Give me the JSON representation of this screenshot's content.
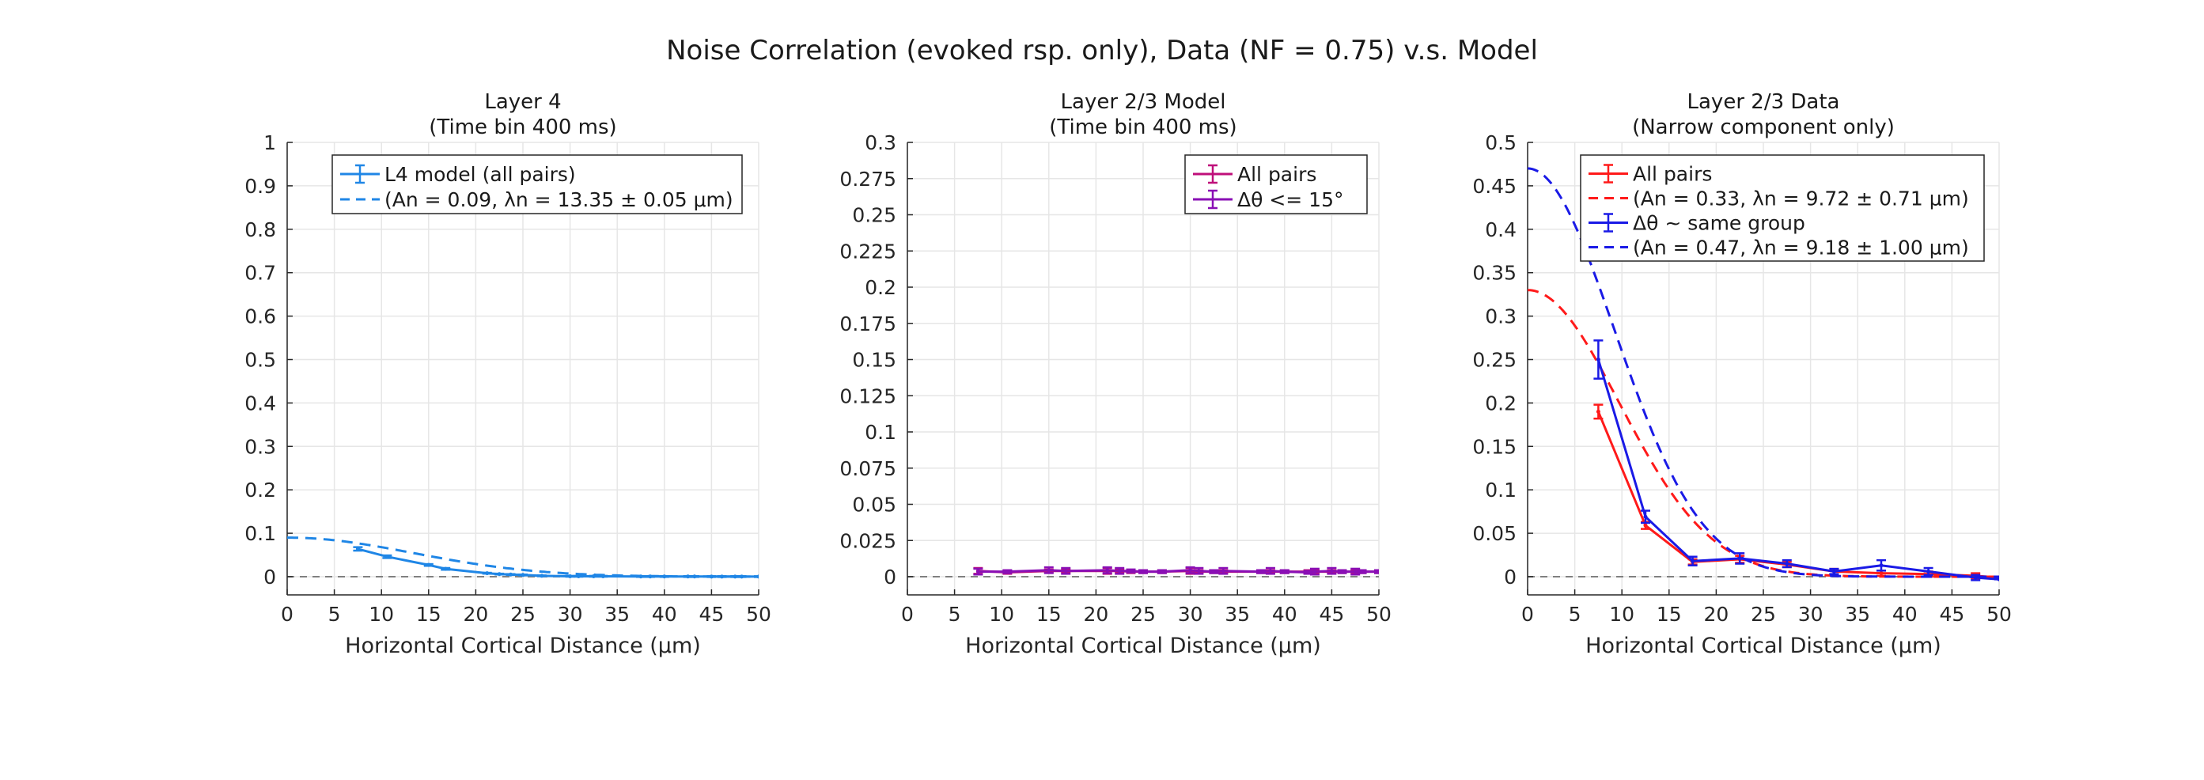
{
  "suptitle": "Noise Correlation (evoked rsp. only), Data (NF = 0.75) v.s. Model",
  "colors": {
    "l4_blue": "#1f86e6",
    "purple": "#8a0fb5",
    "magenta": "#bf0f7a",
    "red": "#ff1a1a",
    "blue": "#1a1ae6",
    "grid": "#e6e6e6",
    "axis": "#262626",
    "zero_line": "#808080"
  },
  "chart_data": [
    {
      "type": "line",
      "title": [
        "Layer 4",
        "(Time bin 400 ms)"
      ],
      "xlabel": "Horizontal Cortical Distance (μm)",
      "ylabel": "",
      "xlim": [
        0,
        50
      ],
      "ylim": [
        0,
        1
      ],
      "x_ticks": [
        0,
        5,
        10,
        15,
        20,
        25,
        30,
        35,
        40,
        45,
        50
      ],
      "y_ticks": [
        0,
        0.1,
        0.2,
        0.3,
        0.4,
        0.5,
        0.6,
        0.7,
        0.8,
        0.9,
        1
      ],
      "y_tick_labels": [
        "0",
        "0.1",
        "0.2",
        "0.3",
        "0.4",
        "0.5",
        "0.6",
        "0.7",
        "0.8",
        "0.9",
        "1"
      ],
      "grid": true,
      "zero_line": true,
      "legend_position": "top-right",
      "series": [
        {
          "name": "L4 model (all pairs)",
          "style": "solid-errorbar",
          "color": "#1f86e6",
          "x": [
            7.5,
            10.6,
            15,
            16.8,
            21.2,
            22.5,
            23.7,
            25,
            27,
            30,
            30.9,
            32.5,
            33.5,
            37.5,
            38.5,
            40,
            42.5,
            43.2,
            45,
            46.1,
            47.5,
            48.2,
            50
          ],
          "y": [
            0.064,
            0.046,
            0.027,
            0.018,
            0.008,
            0.006,
            0.005,
            0.004,
            0.002,
            0.001,
            0.001,
            0.001,
            0.001,
            0.0005,
            0.0005,
            0.0005,
            0.0004,
            0.0004,
            0.0003,
            0.0003,
            0.0003,
            0.0003,
            0.0002
          ],
          "err": [
            0.004,
            0.003,
            0.002,
            0.002,
            0.001,
            0.001,
            0.001,
            0.001,
            0.001,
            0.001,
            0.001,
            0.001,
            0.001,
            0.001,
            0.001,
            0.001,
            0.001,
            0.001,
            0.001,
            0.001,
            0.001,
            0.001,
            0.001
          ]
        },
        {
          "name": "(An = 0.09, λn = 13.35 ± 0.05 μm)",
          "style": "dashed-fit",
          "color": "#1f86e6",
          "An": 0.09,
          "lambda": 13.35
        }
      ]
    },
    {
      "type": "line",
      "title": [
        "Layer 2/3 Model",
        "(Time bin 400 ms)"
      ],
      "xlabel": "Horizontal Cortical Distance (μm)",
      "ylabel": "",
      "xlim": [
        0,
        50
      ],
      "ylim": [
        0,
        0.3
      ],
      "x_ticks": [
        0,
        5,
        10,
        15,
        20,
        25,
        30,
        35,
        40,
        45,
        50
      ],
      "y_ticks": [
        0,
        0.025,
        0.05,
        0.075,
        0.1,
        0.125,
        0.15,
        0.175,
        0.2,
        0.225,
        0.25,
        0.275,
        0.3
      ],
      "y_tick_labels": [
        "0",
        "0.025",
        "0.05",
        "0.075",
        "0.1",
        "0.125",
        "0.15",
        "0.175",
        "0.2",
        "0.225",
        "0.25",
        "0.275",
        "0.3"
      ],
      "grid": true,
      "zero_line": true,
      "legend_position": "top-right",
      "series": [
        {
          "name": "All pairs",
          "style": "solid-errorbar",
          "color": "#bf0f7a",
          "x": [
            7.5,
            10.6,
            15,
            16.8,
            21.2,
            22.5,
            23.7,
            25,
            27,
            30,
            30.9,
            32.5,
            33.5,
            37.5,
            38.5,
            40,
            42.5,
            43.2,
            45,
            46.1,
            47.5,
            48.2,
            50
          ],
          "y": [
            0.004,
            0.003,
            0.004,
            0.004,
            0.004,
            0.004,
            0.0035,
            0.0035,
            0.0035,
            0.004,
            0.0035,
            0.0035,
            0.0035,
            0.0035,
            0.0035,
            0.0035,
            0.0035,
            0.0035,
            0.0035,
            0.0035,
            0.0035,
            0.0035,
            0.0035
          ],
          "err": [
            0.002,
            0.001,
            0.001,
            0.001,
            0.002,
            0.001,
            0.001,
            0.001,
            0.001,
            0.002,
            0.001,
            0.001,
            0.001,
            0.001,
            0.001,
            0.001,
            0.001,
            0.001,
            0.001,
            0.001,
            0.001,
            0.001,
            0.001
          ]
        },
        {
          "name": "Δθ <= 15°",
          "style": "solid-errorbar",
          "color": "#8a0fb5",
          "x": [
            7.5,
            10.6,
            15,
            16.8,
            21.2,
            22.5,
            23.7,
            25,
            27,
            30,
            30.9,
            32.5,
            33.5,
            37.5,
            38.5,
            40,
            42.5,
            43.2,
            45,
            46.1,
            47.5,
            48.2,
            50
          ],
          "y": [
            0.0035,
            0.0035,
            0.0045,
            0.004,
            0.0045,
            0.004,
            0.004,
            0.0035,
            0.0035,
            0.0045,
            0.004,
            0.0035,
            0.004,
            0.0035,
            0.004,
            0.0035,
            0.003,
            0.0035,
            0.004,
            0.0035,
            0.0035,
            0.0035,
            0.0035
          ],
          "err": [
            0.002,
            0.001,
            0.002,
            0.002,
            0.002,
            0.002,
            0.001,
            0.001,
            0.001,
            0.002,
            0.002,
            0.001,
            0.002,
            0.001,
            0.002,
            0.001,
            0.001,
            0.002,
            0.002,
            0.001,
            0.002,
            0.001,
            0.001
          ]
        }
      ]
    },
    {
      "type": "line",
      "title": [
        "Layer 2/3 Data",
        "(Narrow component only)"
      ],
      "xlabel": "Horizontal Cortical Distance (μm)",
      "ylabel": "",
      "xlim": [
        0,
        50
      ],
      "ylim": [
        0,
        0.5
      ],
      "x_ticks": [
        0,
        5,
        10,
        15,
        20,
        25,
        30,
        35,
        40,
        45,
        50
      ],
      "y_ticks": [
        0,
        0.05,
        0.1,
        0.15,
        0.2,
        0.25,
        0.3,
        0.35,
        0.4,
        0.45,
        0.5
      ],
      "y_tick_labels": [
        "0",
        "0.05",
        "0.1",
        "0.15",
        "0.2",
        "0.25",
        "0.3",
        "0.35",
        "0.4",
        "0.45",
        "0.5"
      ],
      "grid": true,
      "zero_line": true,
      "legend_position": "top-right",
      "series": [
        {
          "name": "All pairs",
          "style": "solid-errorbar",
          "color": "#ff1a1a",
          "x": [
            7.5,
            12.5,
            17.5,
            22.5,
            27.5,
            32.5,
            37.5,
            42.5,
            47.5,
            50
          ],
          "y": [
            0.19,
            0.059,
            0.017,
            0.02,
            0.014,
            0.006,
            0.004,
            0.003,
            0.001,
            -0.001
          ],
          "err": [
            0.008,
            0.004,
            0.003,
            0.004,
            0.003,
            0.003,
            0.003,
            0.003,
            0.003,
            0.0
          ]
        },
        {
          "name": "(An = 0.33, λn = 9.72 ± 0.71 μm)",
          "style": "dashed-fit",
          "color": "#ff1a1a",
          "An": 0.33,
          "lambda": 9.72
        },
        {
          "name": "Δθ ~ same group",
          "style": "solid-errorbar",
          "color": "#1a1ae6",
          "x": [
            7.5,
            12.5,
            17.5,
            22.5,
            27.5,
            32.5,
            37.5,
            42.5,
            47.5,
            50
          ],
          "y": [
            0.25,
            0.069,
            0.018,
            0.021,
            0.015,
            0.006,
            0.013,
            0.006,
            -0.001,
            -0.003
          ],
          "err": [
            0.022,
            0.007,
            0.005,
            0.006,
            0.004,
            0.003,
            0.006,
            0.004,
            0.003,
            0.0
          ]
        },
        {
          "name": "(An = 0.47, λn = 9.18 ± 1.00 μm)",
          "style": "dashed-fit",
          "color": "#1a1ae6",
          "An": 0.47,
          "lambda": 9.18
        }
      ]
    }
  ]
}
